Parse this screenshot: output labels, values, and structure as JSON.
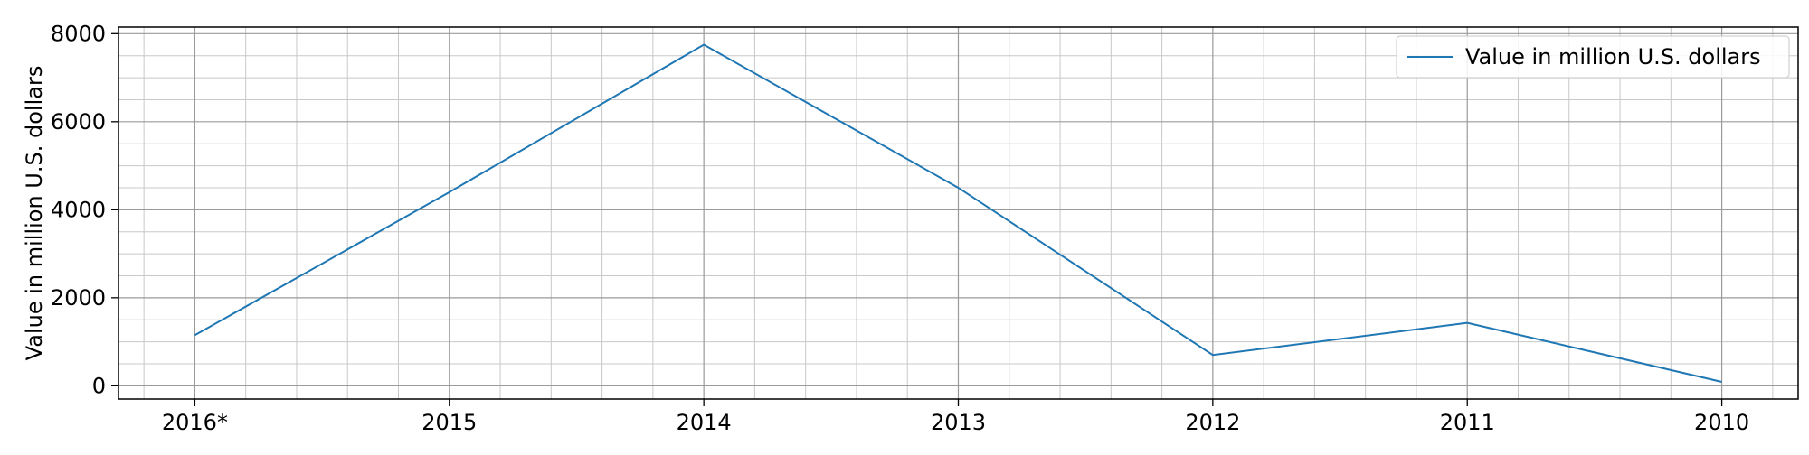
{
  "chart_data": {
    "type": "line",
    "title": "",
    "xlabel": "",
    "ylabel": "Value in million U.S. dollars",
    "categories": [
      "2016*",
      "2015",
      "2014",
      "2013",
      "2012",
      "2011",
      "2010"
    ],
    "series": [
      {
        "name": "Value in million U.S. dollars",
        "values": [
          1150,
          4400,
          7750,
          4500,
          700,
          1430,
          90
        ],
        "color": "#1f77b4"
      }
    ],
    "ylim": [
      -300,
      8150
    ],
    "yticks": [
      0,
      2000,
      4000,
      6000,
      8000
    ],
    "y_minor_step": 500,
    "grid": true,
    "minor_grid": true,
    "legend_position": "top-right"
  }
}
